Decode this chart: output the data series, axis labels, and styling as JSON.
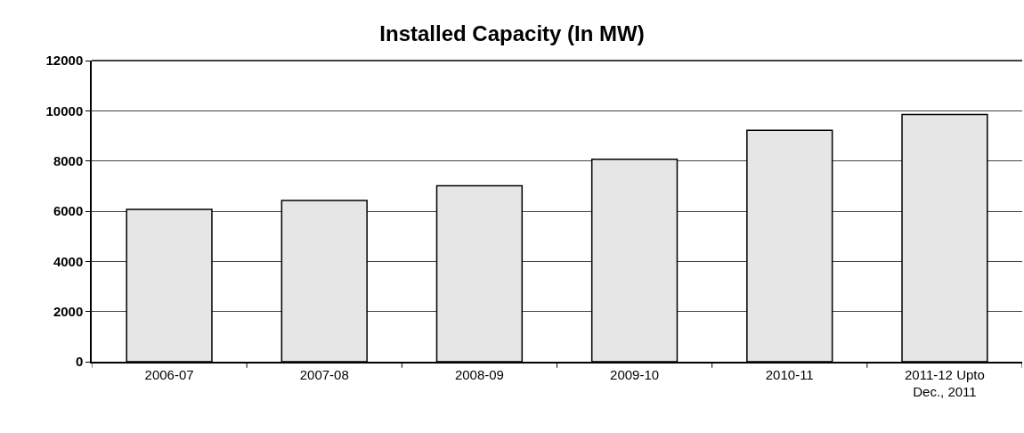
{
  "chart_data": {
    "type": "bar",
    "title": "Installed Capacity (In MW)",
    "categories": [
      "2006-07",
      "2007-08",
      "2008-09",
      "2009-10",
      "2010-11",
      "2011-12 Upto\nDec., 2011"
    ],
    "values": [
      6070,
      6430,
      7010,
      8070,
      9220,
      9850
    ],
    "color": "#e6e6e6",
    "ylim": [
      0,
      12000
    ],
    "yticks": [
      0,
      2000,
      4000,
      6000,
      8000,
      10000,
      12000
    ],
    "grid": "y"
  }
}
